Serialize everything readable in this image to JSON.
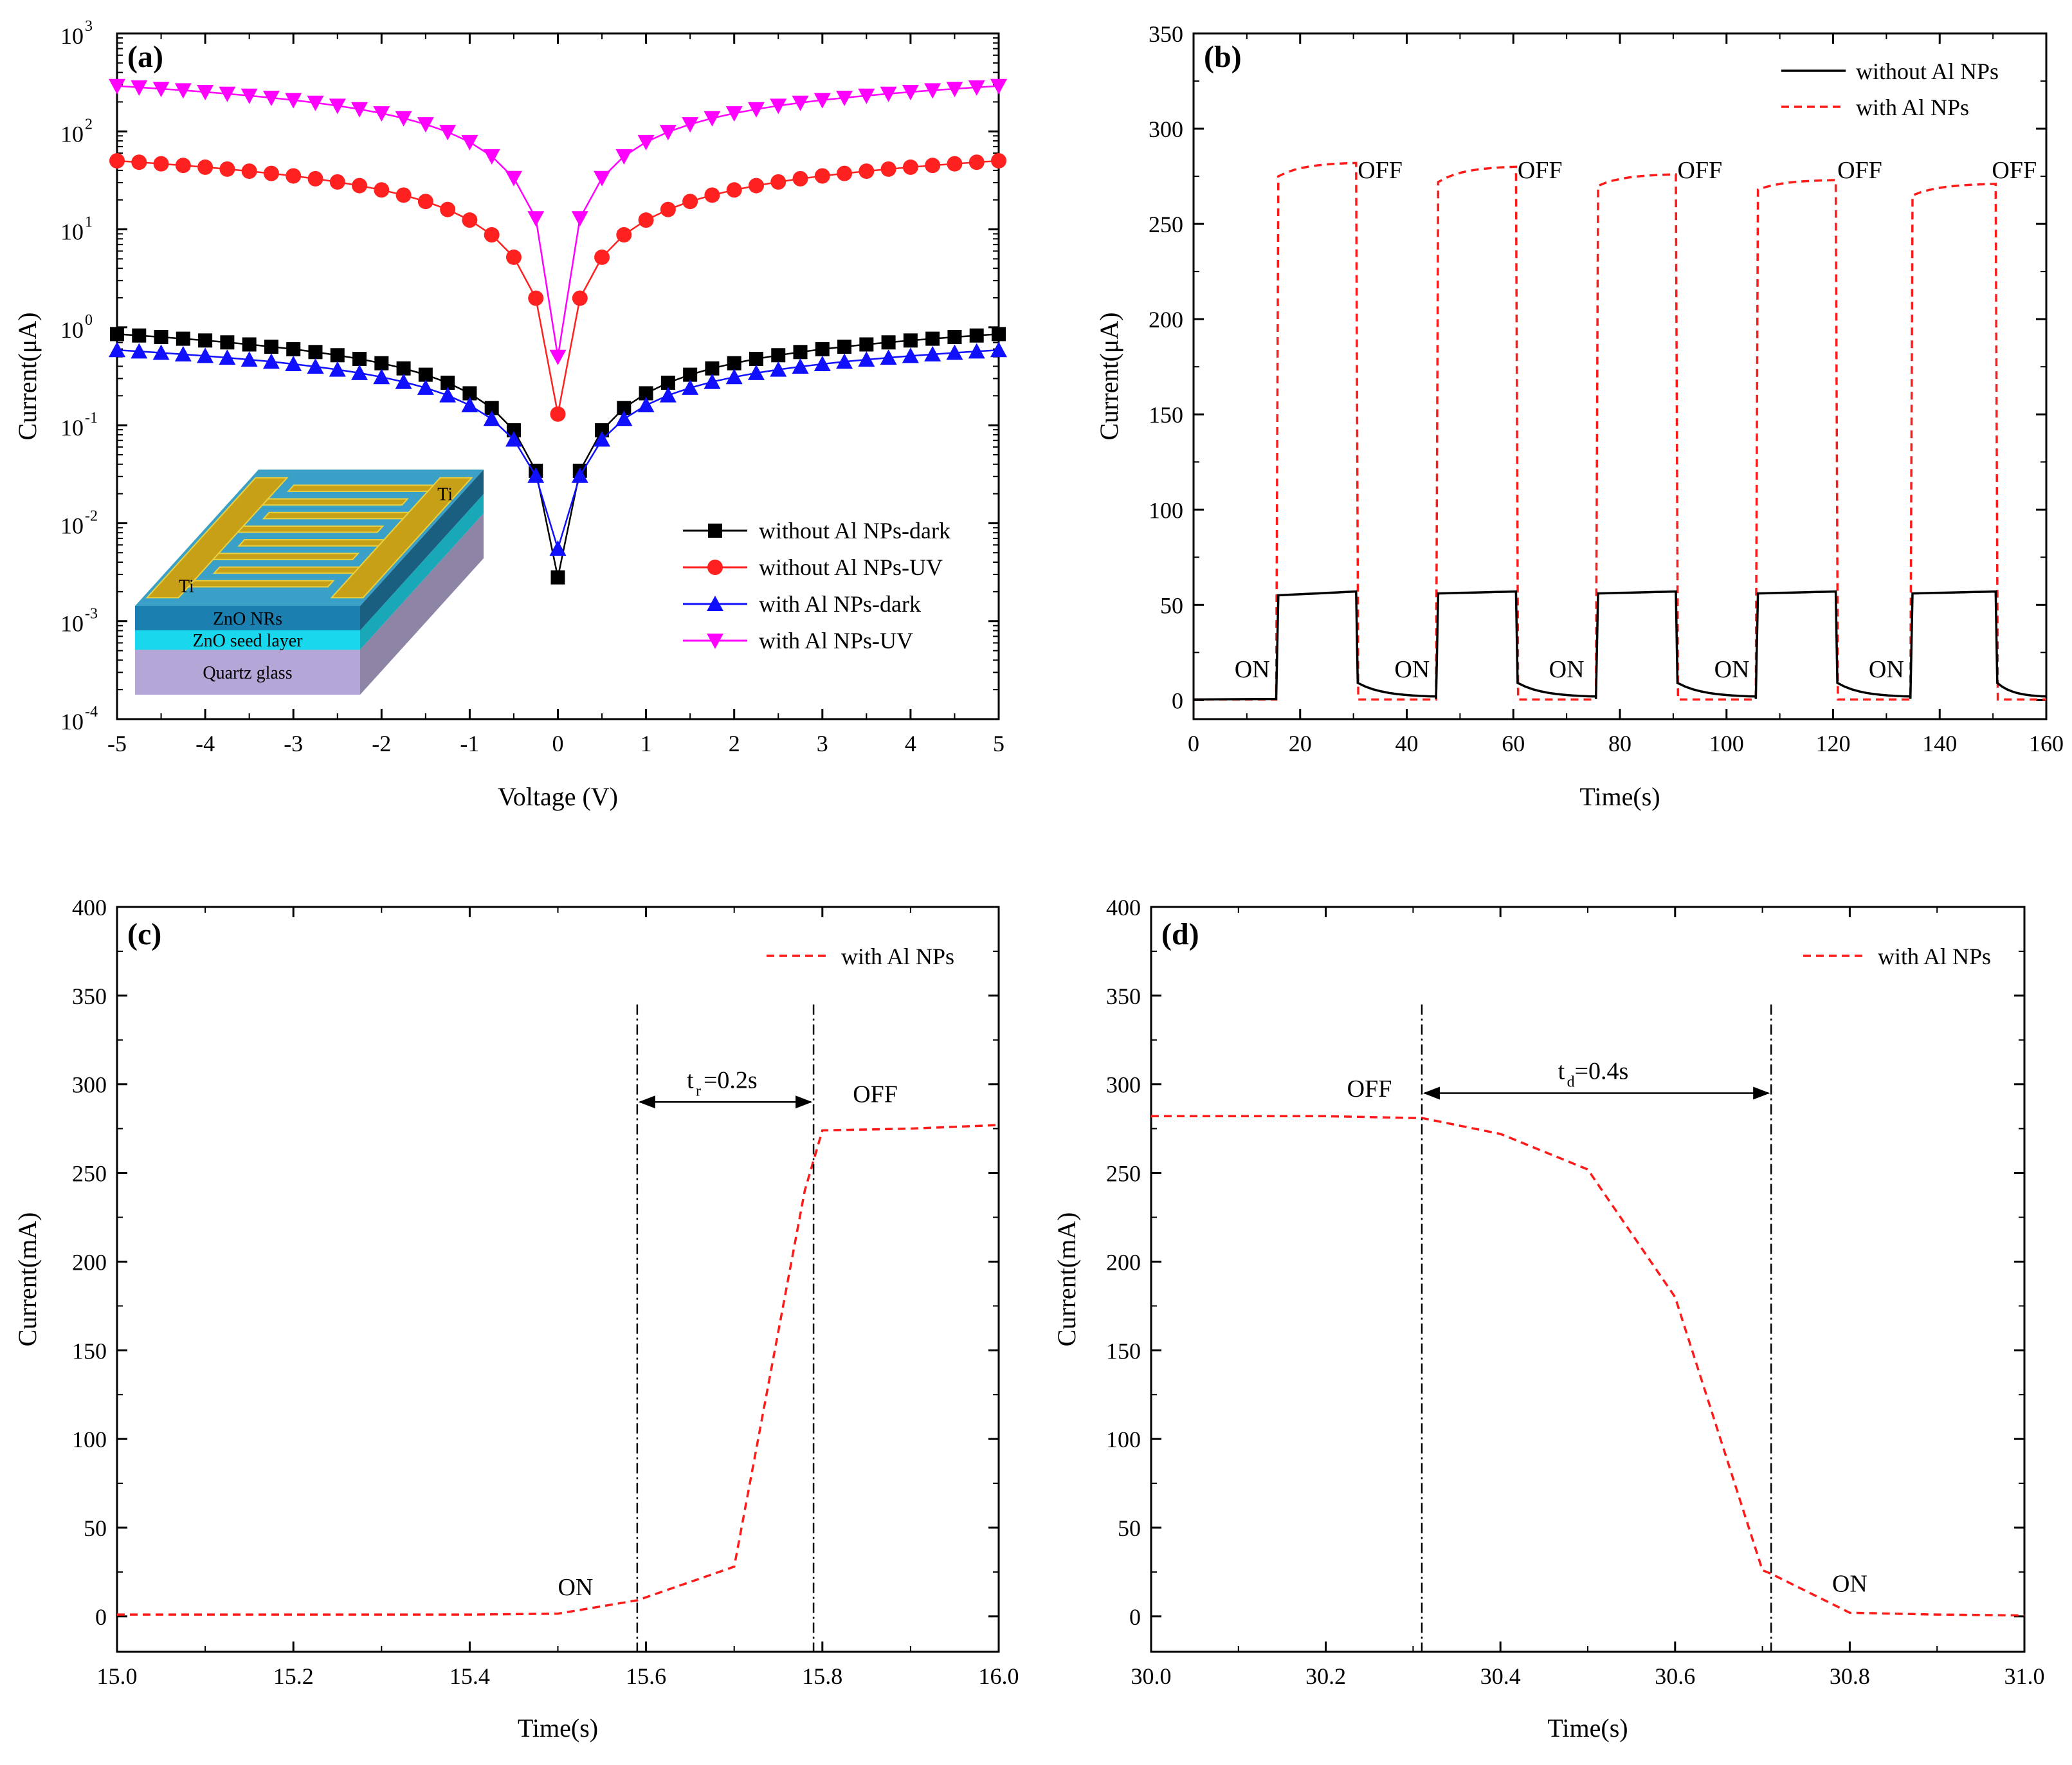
{
  "colors": {
    "black": "#000000",
    "red": "#ff2020",
    "blue": "#1010ff",
    "magenta": "#ff00ff",
    "dash_red": "#ff1a1a"
  },
  "chart_data": [
    {
      "id": "a",
      "type": "line",
      "panel_label": "(a)",
      "xlabel": "Voltage (V)",
      "ylabel": "Current(μA)",
      "xlim": [
        -5,
        5
      ],
      "ylim_log10": [
        -4,
        3
      ],
      "yscale": "log",
      "xticks": [
        "-5",
        "-4",
        "-3",
        "-2",
        "-1",
        "0",
        "1",
        "2",
        "3",
        "4",
        "5"
      ],
      "yticks_exp": [
        "-4",
        "-3",
        "-2",
        "-1",
        "0",
        "1",
        "2",
        "3"
      ],
      "ytick_base": "10",
      "legend_position": "bottom-right",
      "series": [
        {
          "name": "without Al NPs-dark",
          "color": "#000000",
          "marker": "square",
          "peak": 0.85,
          "center": 0.0028,
          "gamma": 0.65
        },
        {
          "name": "without Al NPs-UV",
          "color": "#ff2020",
          "marker": "circle",
          "peak": 50,
          "center": 0.13,
          "gamma": 0.65
        },
        {
          "name": "with Al NPs-dark",
          "color": "#1010ff",
          "marker": "triangle-up",
          "peak": 0.58,
          "center": 0.0055,
          "gamma": 0.6
        },
        {
          "name": "with Al NPs-UV",
          "color": "#ff00ff",
          "marker": "triangle-down",
          "peak": 290,
          "center": 0.5,
          "gamma": 0.6
        }
      ],
      "inset": {
        "labels": [
          "Ti",
          "Ti",
          "ZnO NRs",
          "ZnO seed layer",
          "Quartz glass"
        ]
      }
    },
    {
      "id": "b",
      "type": "line",
      "panel_label": "(b)",
      "xlabel": "Time(s)",
      "ylabel": "Current(μA)",
      "xlim": [
        0,
        160
      ],
      "ylim": [
        -10,
        350
      ],
      "xticks": [
        0,
        20,
        40,
        60,
        80,
        100,
        120,
        140,
        160
      ],
      "yticks": [
        0,
        50,
        100,
        150,
        200,
        250,
        300,
        350
      ],
      "legend_position": "top-right",
      "cycles": [
        {
          "on": 15.5,
          "off": 30.5,
          "high_start": 275,
          "high_end": 282,
          "low_start": 55,
          "low_end": 57
        },
        {
          "on": 45.5,
          "off": 60.5,
          "high_start": 272,
          "high_end": 280,
          "low_start": 56,
          "low_end": 57
        },
        {
          "on": 75.5,
          "off": 90.5,
          "high_start": 270,
          "high_end": 276,
          "low_start": 56,
          "low_end": 57
        },
        {
          "on": 105.5,
          "off": 120.5,
          "high_start": 268,
          "high_end": 273,
          "low_start": 56,
          "low_end": 57
        },
        {
          "on": 134.5,
          "off": 150.5,
          "high_start": 265,
          "high_end": 271,
          "low_start": 56,
          "low_end": 57
        }
      ],
      "series": [
        {
          "name": "without Al NPs",
          "color": "#000000",
          "style": "solid"
        },
        {
          "name": "with Al NPs",
          "color": "#ff1a1a",
          "style": "dashed"
        }
      ],
      "annotations": {
        "on_label": "ON",
        "off_label": "OFF",
        "on_positions_x": [
          11,
          41,
          70,
          101,
          130
        ],
        "off_positions_x": [
          35,
          65,
          95,
          125,
          154
        ]
      }
    },
    {
      "id": "c",
      "type": "line",
      "panel_label": "(c)",
      "xlabel": "Time(s)",
      "ylabel": "Current(mA)",
      "xlim": [
        15.0,
        16.0
      ],
      "ylim": [
        -20,
        400
      ],
      "xticks": [
        "15.0",
        "15.2",
        "15.4",
        "15.6",
        "15.8",
        "16.0"
      ],
      "yticks": [
        0,
        50,
        100,
        150,
        200,
        250,
        300,
        350,
        400
      ],
      "legend_position": "top-right",
      "series": [
        {
          "name": "with Al NPs",
          "color": "#ff1a1a",
          "style": "dashed",
          "x": [
            15.0,
            15.1,
            15.2,
            15.3,
            15.4,
            15.5,
            15.59,
            15.7,
            15.78,
            15.8,
            15.9,
            16.0
          ],
          "y": [
            1,
            1,
            1,
            1,
            1,
            1.5,
            9,
            28,
            240,
            274,
            275,
            277
          ]
        }
      ],
      "vlines_x": [
        15.59,
        15.79
      ],
      "arrow": {
        "label_main": "t",
        "label_sub": "r",
        "label_rest": "=0.2s",
        "y": 290
      },
      "annotations": [
        {
          "text": "ON",
          "x": 15.52,
          "y": 12
        },
        {
          "text": "OFF",
          "x": 15.86,
          "y": 290
        }
      ]
    },
    {
      "id": "d",
      "type": "line",
      "panel_label": "(d)",
      "xlabel": "Time(s)",
      "ylabel": "Current(mA)",
      "xlim": [
        30.0,
        31.0
      ],
      "ylim": [
        -20,
        400
      ],
      "xticks": [
        "30.0",
        "30.2",
        "30.4",
        "30.6",
        "30.8",
        "31.0"
      ],
      "yticks": [
        0,
        50,
        100,
        150,
        200,
        250,
        300,
        350,
        400
      ],
      "legend_position": "top-right",
      "series": [
        {
          "name": "with Al NPs",
          "color": "#ff1a1a",
          "style": "dashed",
          "x": [
            30.0,
            30.1,
            30.2,
            30.3,
            30.31,
            30.4,
            30.5,
            30.6,
            30.7,
            30.71,
            30.8,
            30.9,
            31.0
          ],
          "y": [
            282,
            282,
            282,
            281,
            281,
            272,
            252,
            180,
            26,
            24,
            2,
            1,
            0.5
          ]
        }
      ],
      "vlines_x": [
        30.31,
        30.71
      ],
      "arrow": {
        "label_main": "t",
        "label_sub": "d",
        "label_rest": "=0.4s",
        "y": 295
      },
      "annotations": [
        {
          "text": "OFF",
          "x": 30.25,
          "y": 293
        },
        {
          "text": "ON",
          "x": 30.8,
          "y": 14
        }
      ]
    }
  ]
}
